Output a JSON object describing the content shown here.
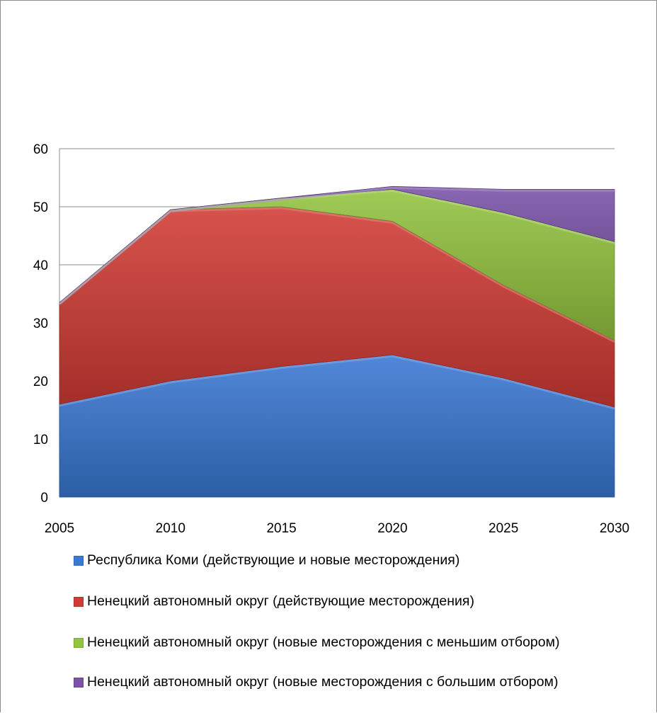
{
  "chart_data": {
    "type": "area",
    "stacked": true,
    "title": "",
    "xlabel": "",
    "ylabel": "",
    "x": [
      2005,
      2010,
      2015,
      2020,
      2025,
      2030
    ],
    "ylim": [
      0,
      60
    ],
    "yticks": [
      0,
      10,
      20,
      30,
      40,
      50,
      60
    ],
    "grid": "horizontal",
    "legend_position": "bottom",
    "series": [
      {
        "name": "Республика Коми (действующие и новые месторождения)",
        "color": "#3a78d4",
        "values": [
          16,
          20,
          22.5,
          24.5,
          20.5,
          15.5
        ]
      },
      {
        "name": "Ненецкий автономный округ (действующие месторождения)",
        "color": "#d23b35",
        "values": [
          17.5,
          29.5,
          27.5,
          23,
          16,
          11.5
        ]
      },
      {
        "name": "Ненецкий автономный округ (новые месторождения с меньшим отбором)",
        "color": "#93c43f",
        "values": [
          0,
          0,
          1.5,
          5.5,
          12.5,
          17
        ]
      },
      {
        "name": "Ненецкий автономный округ (новые месторождения с большим отбором)",
        "color": "#7a52a8",
        "values": [
          0,
          0,
          0,
          0.5,
          4,
          9
        ]
      }
    ]
  }
}
